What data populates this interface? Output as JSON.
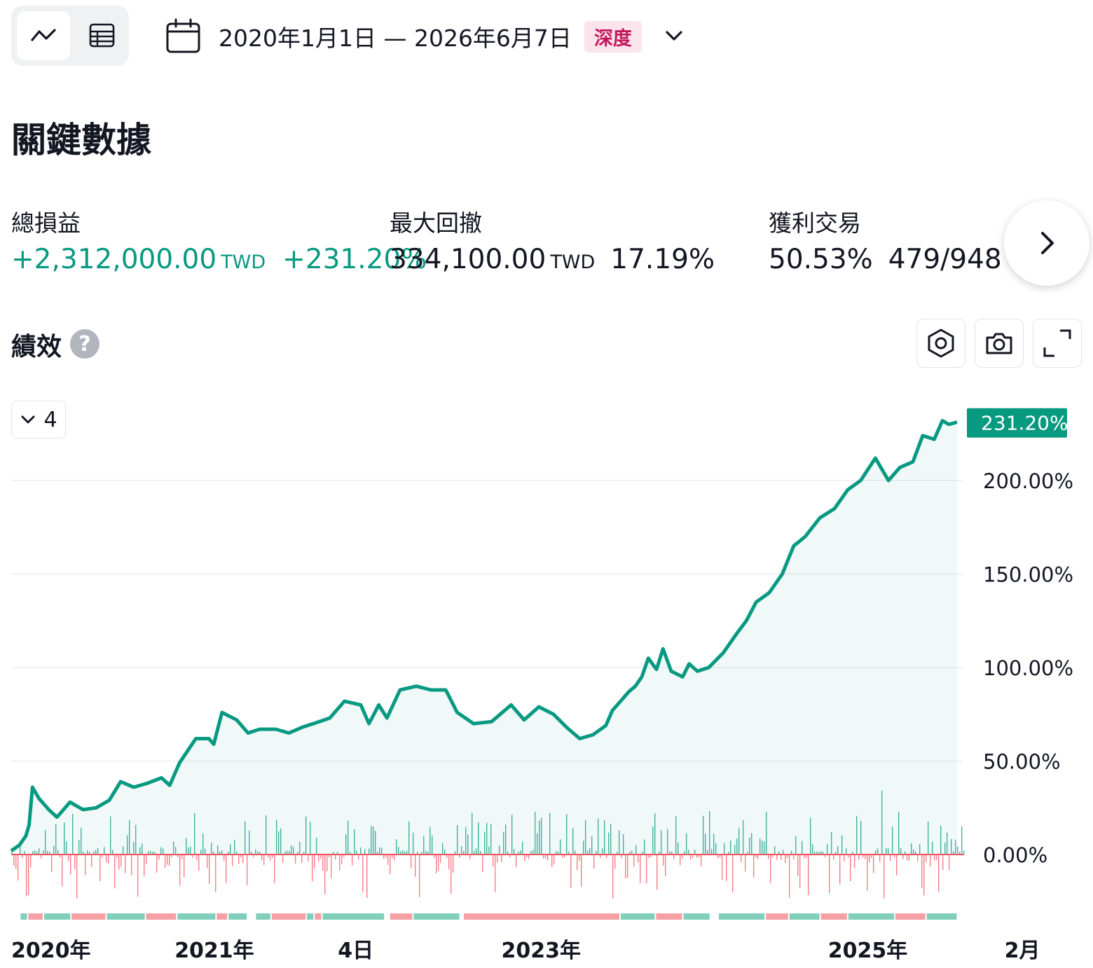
{
  "toolbar": {
    "views": [
      {
        "name": "chart-view",
        "icon": "line-chart-icon",
        "active": true
      },
      {
        "name": "table-view",
        "icon": "table-icon",
        "active": false
      }
    ],
    "date_range": "2020年1月1日 — 2026年6月7日",
    "depth_badge": "深度",
    "badge_color": "#c2185b"
  },
  "key_metrics": {
    "title": "關鍵數據",
    "items": [
      {
        "label": "總損益",
        "value": "+2,312,000.00",
        "currency": "TWD",
        "secondary": "+231.20%",
        "positive": true
      },
      {
        "label": "最大回撤",
        "value": "334,100.00",
        "currency": "TWD",
        "secondary": "17.19%",
        "positive": false
      },
      {
        "label": "獲利交易",
        "value": "50.53%",
        "currency": "",
        "secondary": "479/948",
        "positive": false
      }
    ]
  },
  "performance": {
    "title": "績效",
    "help_symbol": "?",
    "series_count": "4"
  },
  "colors": {
    "accent_green": "#089981",
    "loss_red": "#f7525f",
    "text": "#131722"
  },
  "chart_data": {
    "type": "line",
    "y_unit": "%",
    "ylim": [
      -5,
      240
    ],
    "y_ticks": [
      "0.00%",
      "50.00%",
      "100.00%",
      "150.00%",
      "200.00%"
    ],
    "y_tick_values": [
      0,
      50,
      100,
      150,
      200
    ],
    "x_ticks": [
      "2020年",
      "2021年",
      "4日",
      "2023年",
      "2025年",
      "2月"
    ],
    "x_tick_times": [
      2020.0,
      2021.0,
      2022.0,
      2023.0,
      2025.0,
      2026.08
    ],
    "last_value_label": "231.20%",
    "grid": true,
    "series": [
      {
        "type": "area",
        "points": [
          [
            2020.0,
            2
          ],
          [
            2020.05,
            5
          ],
          [
            2020.09,
            10
          ],
          [
            2020.11,
            16
          ],
          [
            2020.13,
            36
          ],
          [
            2020.17,
            30
          ],
          [
            2020.23,
            24
          ],
          [
            2020.28,
            20
          ],
          [
            2020.36,
            28
          ],
          [
            2020.44,
            24
          ],
          [
            2020.52,
            25
          ],
          [
            2020.6,
            29
          ],
          [
            2020.67,
            39
          ],
          [
            2020.75,
            36
          ],
          [
            2020.83,
            38
          ],
          [
            2020.92,
            41
          ],
          [
            2020.97,
            37
          ],
          [
            2021.03,
            49
          ],
          [
            2021.13,
            62
          ],
          [
            2021.21,
            62
          ],
          [
            2021.24,
            59
          ],
          [
            2021.29,
            76
          ],
          [
            2021.38,
            72
          ],
          [
            2021.45,
            65
          ],
          [
            2021.52,
            67
          ],
          [
            2021.62,
            67
          ],
          [
            2021.7,
            65
          ],
          [
            2021.78,
            68
          ],
          [
            2021.85,
            70
          ],
          [
            2021.95,
            73
          ],
          [
            2022.04,
            82
          ],
          [
            2022.14,
            80
          ],
          [
            2022.19,
            70
          ],
          [
            2022.25,
            80
          ],
          [
            2022.3,
            73
          ],
          [
            2022.38,
            88
          ],
          [
            2022.48,
            90
          ],
          [
            2022.57,
            88
          ],
          [
            2022.66,
            88
          ],
          [
            2022.73,
            76
          ],
          [
            2022.83,
            70
          ],
          [
            2022.94,
            71
          ],
          [
            2023.06,
            80
          ],
          [
            2023.14,
            72
          ],
          [
            2023.23,
            79
          ],
          [
            2023.32,
            75
          ],
          [
            2023.4,
            68
          ],
          [
            2023.48,
            62
          ],
          [
            2023.56,
            64
          ],
          [
            2023.64,
            69
          ],
          [
            2023.68,
            77
          ],
          [
            2023.73,
            82
          ],
          [
            2023.78,
            87
          ],
          [
            2023.82,
            90
          ],
          [
            2023.86,
            95
          ],
          [
            2023.9,
            105
          ],
          [
            2023.95,
            99
          ],
          [
            2023.99,
            110
          ],
          [
            2024.04,
            98
          ],
          [
            2024.11,
            95
          ],
          [
            2024.15,
            102
          ],
          [
            2024.2,
            98
          ],
          [
            2024.27,
            100
          ],
          [
            2024.36,
            108
          ],
          [
            2024.44,
            118
          ],
          [
            2024.5,
            125
          ],
          [
            2024.56,
            135
          ],
          [
            2024.64,
            140
          ],
          [
            2024.72,
            150
          ],
          [
            2024.79,
            165
          ],
          [
            2024.86,
            170
          ],
          [
            2024.95,
            180
          ],
          [
            2025.04,
            185
          ],
          [
            2025.12,
            195
          ],
          [
            2025.2,
            200
          ],
          [
            2025.29,
            212
          ],
          [
            2025.37,
            200
          ],
          [
            2025.44,
            207
          ],
          [
            2025.52,
            210
          ],
          [
            2025.58,
            224
          ],
          [
            2025.65,
            222
          ],
          [
            2025.7,
            232
          ],
          [
            2025.74,
            230
          ],
          [
            2025.79,
            231.2
          ]
        ]
      },
      {
        "type": "histogram",
        "description_seed": 7,
        "range": [
          -20,
          35
        ]
      }
    ],
    "trade_strip": [
      [
        "w",
        0.012
      ],
      [
        "g",
        0.01
      ],
      [
        "r",
        0.02
      ],
      [
        "g",
        0.035
      ],
      [
        "r",
        0.045
      ],
      [
        "g",
        0.05
      ],
      [
        "r",
        0.04
      ],
      [
        "g",
        0.05
      ],
      [
        "r",
        0.015
      ],
      [
        "g",
        0.025
      ],
      [
        "w",
        0.01
      ],
      [
        "g",
        0.02
      ],
      [
        "r",
        0.045
      ],
      [
        "g",
        0.01
      ],
      [
        "r",
        0.01
      ],
      [
        "g",
        0.08
      ],
      [
        "w",
        0.006
      ],
      [
        "r",
        0.03
      ],
      [
        "g",
        0.06
      ],
      [
        "w",
        0.004
      ],
      [
        "r",
        0.2
      ],
      [
        "g",
        0.045
      ],
      [
        "r",
        0.035
      ],
      [
        "g",
        0.035
      ],
      [
        "w",
        0.01
      ],
      [
        "g",
        0.06
      ],
      [
        "r",
        0.03
      ],
      [
        "g",
        0.04
      ],
      [
        "r",
        0.035
      ],
      [
        "g",
        0.06
      ],
      [
        "r",
        0.04
      ],
      [
        "g",
        0.04
      ],
      [
        "w",
        0.004
      ]
    ]
  }
}
